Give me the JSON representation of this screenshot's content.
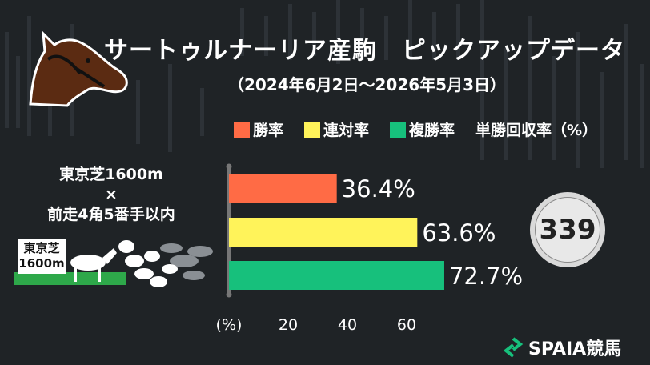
{
  "header": {
    "title": "サートゥルナーリア産駒　ピックアップデータ",
    "period": "（2024年6月2日〜2026年5月3日）"
  },
  "legend": {
    "items": [
      {
        "label": "勝率",
        "color": "#ff6b45"
      },
      {
        "label": "連対率",
        "color": "#fff35a"
      },
      {
        "label": "複勝率",
        "color": "#17c07c"
      }
    ],
    "return_label": "単勝回収率（%）"
  },
  "condition": {
    "line1": "東京芝1600m",
    "line2": "×",
    "line3": "前走4角5番手以内"
  },
  "sign": {
    "line1": "東京芝",
    "line2": "1600m"
  },
  "chart_data": {
    "type": "bar",
    "orientation": "horizontal",
    "categories": [
      "勝率",
      "連対率",
      "複勝率"
    ],
    "values": [
      36.4,
      63.6,
      72.7
    ],
    "value_labels": [
      "36.4%",
      "63.6%",
      "72.7%"
    ],
    "colors": [
      "#ff6b45",
      "#fff35a",
      "#17c07c"
    ],
    "x_ticks": [
      "20",
      "40",
      "60"
    ],
    "x_tick_values": [
      20,
      40,
      60
    ],
    "xlabel": "(%)",
    "xlim": [
      0,
      80
    ],
    "grid": false
  },
  "return_rate": {
    "value": "339"
  },
  "logo": {
    "text": "SPAIA競馬"
  }
}
